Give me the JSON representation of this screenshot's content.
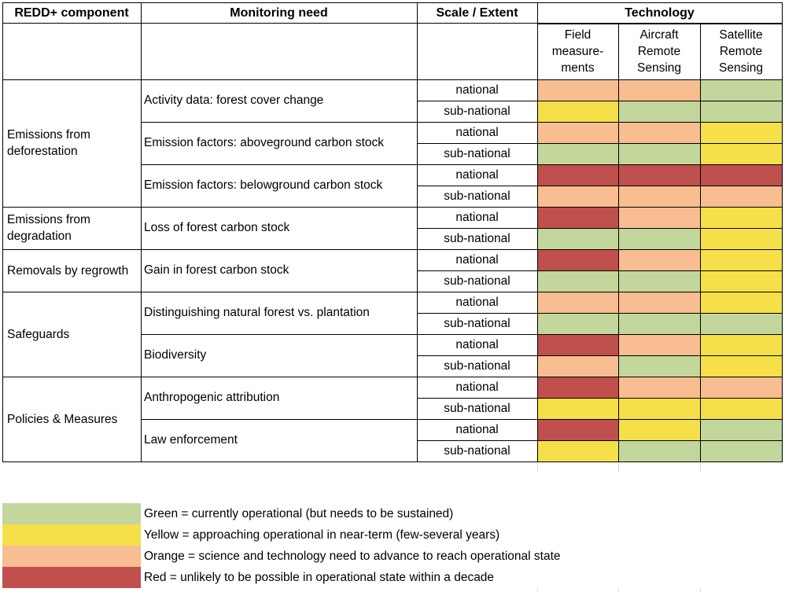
{
  "colors": {
    "G": "#c3d69b",
    "Y": "#f6e04a",
    "O": "#f8bd91",
    "R": "#c0504d"
  },
  "headers": {
    "component": "REDD+ component",
    "need": "Monitoring need",
    "scale": "Scale / Extent",
    "technology": "Technology",
    "tech_cols": [
      "Field measure-ments",
      "Aircraft Remote Sensing",
      "Satellite Remote Sensing"
    ]
  },
  "components": [
    {
      "label": "Emissions from deforestation"
    },
    {
      "label": "Emissions from degradation"
    },
    {
      "label": "Removals by regrowth"
    },
    {
      "label": "Safeguards"
    },
    {
      "label": "Policies & Measures"
    }
  ],
  "needs": [
    {
      "label": "Activity data: forest cover change"
    },
    {
      "label": "Emission factors: aboveground carbon stock"
    },
    {
      "label": "Emission factors: belowground carbon stock"
    },
    {
      "label": "Loss of forest carbon stock"
    },
    {
      "label": "Gain in forest carbon stock"
    },
    {
      "label": "Distinguishing natural forest vs. plantation"
    },
    {
      "label": "Biodiversity"
    },
    {
      "label": "Anthropogenic attribution"
    },
    {
      "label": "Law enforcement"
    }
  ],
  "rows": [
    {
      "scale": "national",
      "ratings": [
        "O",
        "O",
        "G"
      ]
    },
    {
      "scale": "sub-national",
      "ratings": [
        "Y",
        "G",
        "G"
      ]
    },
    {
      "scale": "national",
      "ratings": [
        "O",
        "O",
        "Y"
      ]
    },
    {
      "scale": "sub-national",
      "ratings": [
        "G",
        "G",
        "Y"
      ]
    },
    {
      "scale": "national",
      "ratings": [
        "R",
        "R",
        "R"
      ]
    },
    {
      "scale": "sub-national",
      "ratings": [
        "O",
        "O",
        "O"
      ]
    },
    {
      "scale": "national",
      "ratings": [
        "R",
        "O",
        "Y"
      ]
    },
    {
      "scale": "sub-national",
      "ratings": [
        "G",
        "G",
        "Y"
      ]
    },
    {
      "scale": "national",
      "ratings": [
        "R",
        "O",
        "Y"
      ]
    },
    {
      "scale": "sub-national",
      "ratings": [
        "G",
        "G",
        "Y"
      ]
    },
    {
      "scale": "national",
      "ratings": [
        "O",
        "O",
        "Y"
      ]
    },
    {
      "scale": "sub-national",
      "ratings": [
        "G",
        "G",
        "G"
      ]
    },
    {
      "scale": "national",
      "ratings": [
        "R",
        "O",
        "Y"
      ]
    },
    {
      "scale": "sub-national",
      "ratings": [
        "O",
        "G",
        "Y"
      ]
    },
    {
      "scale": "national",
      "ratings": [
        "R",
        "O",
        "O"
      ]
    },
    {
      "scale": "sub-national",
      "ratings": [
        "Y",
        "Y",
        "Y"
      ]
    },
    {
      "scale": "national",
      "ratings": [
        "R",
        "Y",
        "G"
      ]
    },
    {
      "scale": "sub-national",
      "ratings": [
        "Y",
        "G",
        "G"
      ]
    }
  ],
  "legend": [
    {
      "color": "G",
      "text": "Green = currently operational (but needs to be sustained)"
    },
    {
      "color": "Y",
      "text": "Yellow = approaching operational in near-term (few-several years)"
    },
    {
      "color": "O",
      "text": "Orange =  science and technology need to advance to reach operational state"
    },
    {
      "color": "R",
      "text": "Red = unlikely to be possible in operational state within a decade"
    }
  ]
}
